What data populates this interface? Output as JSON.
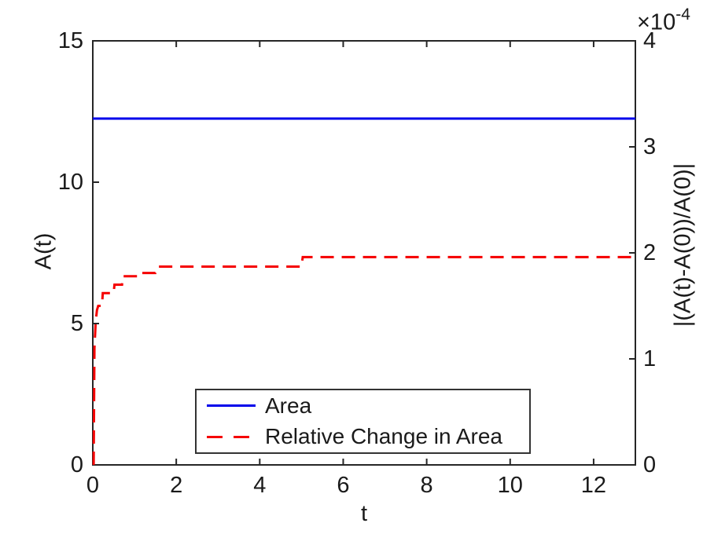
{
  "figure": {
    "background": "#ffffff",
    "axis_color": "#262626",
    "text_color": "#1a1a1a"
  },
  "chart_data": {
    "type": "line",
    "title": "",
    "xlabel": "t",
    "ylabel_left": "A(t)",
    "ylabel_right": "|(A(t)-A(0))/A(0)|",
    "right_multiplier_base": "×10",
    "right_multiplier_exp": "-4",
    "xlim": [
      0,
      13
    ],
    "ylim_left": [
      0,
      15
    ],
    "ylim_right_e4": [
      0,
      4
    ],
    "x_ticks": [
      0,
      2,
      4,
      6,
      8,
      10,
      12
    ],
    "y_ticks_left": [
      0,
      5,
      10,
      15
    ],
    "y_ticks_right": [
      0,
      1,
      2,
      3,
      4
    ],
    "grid": false,
    "legend": {
      "position": "lower-center-inside",
      "entries": [
        {
          "label": "Area",
          "color": "#0000eb",
          "style": "solid"
        },
        {
          "label": "Relative Change in Area",
          "color": "#f50000",
          "style": "dashed"
        }
      ]
    },
    "series": [
      {
        "name": "Area",
        "axis": "left",
        "color": "#0000eb",
        "style": "solid",
        "x": [
          0,
          13
        ],
        "y": [
          12.25,
          12.25
        ]
      },
      {
        "name": "Relative Change in Area",
        "axis": "right",
        "units": "1e-4",
        "color": "#f50000",
        "style": "dashed",
        "x": [
          0.02,
          0.04,
          0.07,
          0.1,
          0.13,
          0.22,
          0.24,
          0.5,
          0.52,
          0.7,
          0.72,
          1.1,
          1.12,
          1.5,
          1.55,
          5.0,
          5.03,
          13
        ],
        "y": [
          0,
          1.1,
          1.35,
          1.46,
          1.5,
          1.5,
          1.62,
          1.62,
          1.7,
          1.7,
          1.78,
          1.78,
          1.81,
          1.81,
          1.87,
          1.87,
          1.96,
          1.96
        ]
      }
    ]
  }
}
